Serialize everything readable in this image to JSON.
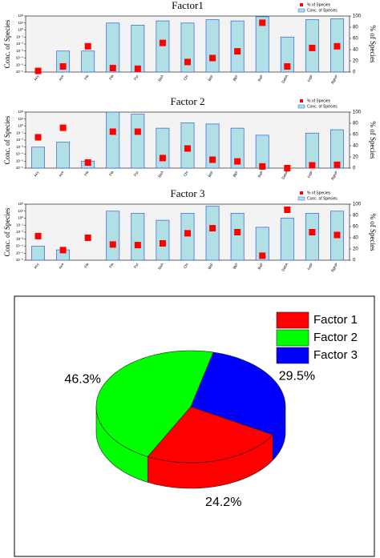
{
  "chart_data": [
    {
      "type": "bar",
      "title": "Factor1",
      "log_scale": true,
      "categories": [
        "Acy",
        "Ace",
        "Fle",
        "Fla",
        "Pyr",
        "BaA",
        "Chr",
        "BbF",
        "BkF",
        "BaP",
        "DahA",
        "IndP",
        "BghiP"
      ],
      "series": [
        {
          "name": "Conc. of Species",
          "color": "#b0e0e6",
          "values": [
            1e-06,
            0.001,
            0.001,
            10,
            5,
            20,
            10,
            30,
            20,
            80,
            0.1,
            30,
            40
          ]
        },
        {
          "name": "% of Species",
          "color": "#ff0000",
          "type": "scatter",
          "axis": "y2",
          "values": [
            2,
            10,
            46,
            7,
            6,
            52,
            18,
            25,
            37,
            88,
            10,
            43,
            46
          ]
        }
      ],
      "ylabel": "Conc. of Species",
      "y2label": "% of Species",
      "ylim": [
        1e-06,
        100
      ],
      "yticks": [
        {
          "value": 1e-06,
          "label": "10⁻⁶"
        },
        {
          "value": 1e-05,
          "label": "10⁻⁵"
        },
        {
          "value": 0.0001,
          "label": "10⁻⁴"
        },
        {
          "value": 0.001,
          "label": "10⁻³"
        },
        {
          "value": 0.01,
          "label": "10⁻²"
        },
        {
          "value": 0.1,
          "label": "10⁻¹"
        },
        {
          "value": 1,
          "label": "10⁰"
        },
        {
          "value": 10,
          "label": "10¹"
        },
        {
          "value": 100,
          "label": "10²"
        }
      ],
      "y2lim": [
        0,
        100
      ],
      "y2ticks": [
        0,
        20,
        40,
        60,
        80,
        100
      ],
      "legend": "top-right"
    },
    {
      "type": "bar",
      "title": "Factor 2",
      "log_scale": true,
      "categories": [
        "Acy",
        "Ace",
        "Fle",
        "Fla",
        "Pyr",
        "BaA",
        "Chr",
        "BbF",
        "BkF",
        "BaP",
        "DahA",
        "IndP",
        "BghiP"
      ],
      "series": [
        {
          "name": "Conc. of Species",
          "color": "#b0e0e6",
          "values": [
            0.001,
            0.005,
            1e-05,
            100,
            50,
            0.5,
            3,
            2,
            0.5,
            0.05,
            1e-06,
            0.1,
            0.3
          ]
        },
        {
          "name": "% of Species",
          "color": "#ff0000",
          "type": "scatter",
          "axis": "y2",
          "values": [
            55,
            72,
            10,
            65,
            65,
            18,
            35,
            15,
            12,
            3,
            0,
            5,
            6
          ]
        }
      ],
      "ylabel": "Conc. of Species",
      "y2label": "% of Species",
      "ylim": [
        1e-06,
        100
      ],
      "yticks": [
        {
          "value": 1e-06,
          "label": "10⁻⁶"
        },
        {
          "value": 1e-05,
          "label": "10⁻⁵"
        },
        {
          "value": 0.0001,
          "label": "10⁻⁴"
        },
        {
          "value": 0.001,
          "label": "10⁻³"
        },
        {
          "value": 0.01,
          "label": "10⁻²"
        },
        {
          "value": 0.1,
          "label": "10⁻¹"
        },
        {
          "value": 1,
          "label": "10⁰"
        },
        {
          "value": 10,
          "label": "10¹"
        },
        {
          "value": 100,
          "label": "10²"
        }
      ],
      "y2lim": [
        0,
        100
      ],
      "y2ticks": [
        0,
        20,
        40,
        60,
        80,
        100
      ],
      "legend": "top-right"
    },
    {
      "type": "bar",
      "title": "Factor 3",
      "log_scale": true,
      "categories": [
        "Acy",
        "Ace",
        "Fle",
        "Fla",
        "Pyr",
        "BaA",
        "Chr",
        "BbF",
        "BkF",
        "BaP",
        "DahA",
        "IndP",
        "BghiP"
      ],
      "series": [
        {
          "name": "Conc. of Species",
          "color": "#b0e0e6",
          "values": [
            0.0001,
            3e-05,
            1e-06,
            10,
            5,
            0.5,
            5,
            50,
            5,
            0.05,
            1,
            5,
            10
          ]
        },
        {
          "name": "% of Species",
          "color": "#ff0000",
          "type": "scatter",
          "axis": "y2",
          "values": [
            43,
            18,
            40,
            28,
            27,
            30,
            48,
            57,
            50,
            8,
            90,
            50,
            45
          ]
        }
      ],
      "ylabel": "Conc. of Species",
      "y2label": "% of Species",
      "ylim": [
        1e-06,
        100
      ],
      "yticks": [
        {
          "value": 1e-06,
          "label": "10⁻⁶"
        },
        {
          "value": 1e-05,
          "label": "10⁻⁵"
        },
        {
          "value": 0.0001,
          "label": "10⁻⁴"
        },
        {
          "value": 0.001,
          "label": "10⁻³"
        },
        {
          "value": 0.01,
          "label": "10⁻²"
        },
        {
          "value": 0.1,
          "label": "10⁻¹"
        },
        {
          "value": 1,
          "label": "10⁰"
        },
        {
          "value": 10,
          "label": "10¹"
        },
        {
          "value": 100,
          "label": "10²"
        }
      ],
      "y2lim": [
        0,
        100
      ],
      "y2ticks": [
        0,
        20,
        40,
        60,
        80,
        100
      ],
      "legend": "top-right"
    },
    {
      "type": "pie",
      "categories": [
        "Factor 1",
        "Factor 2",
        "Factor 3"
      ],
      "values": [
        24.2,
        46.3,
        29.5
      ],
      "value_labels": [
        "24.2%",
        "46.3%",
        "29.5%"
      ],
      "colors": [
        "#ff0000",
        "#00ff00",
        "#0000ff"
      ],
      "legend": "top-right"
    }
  ]
}
